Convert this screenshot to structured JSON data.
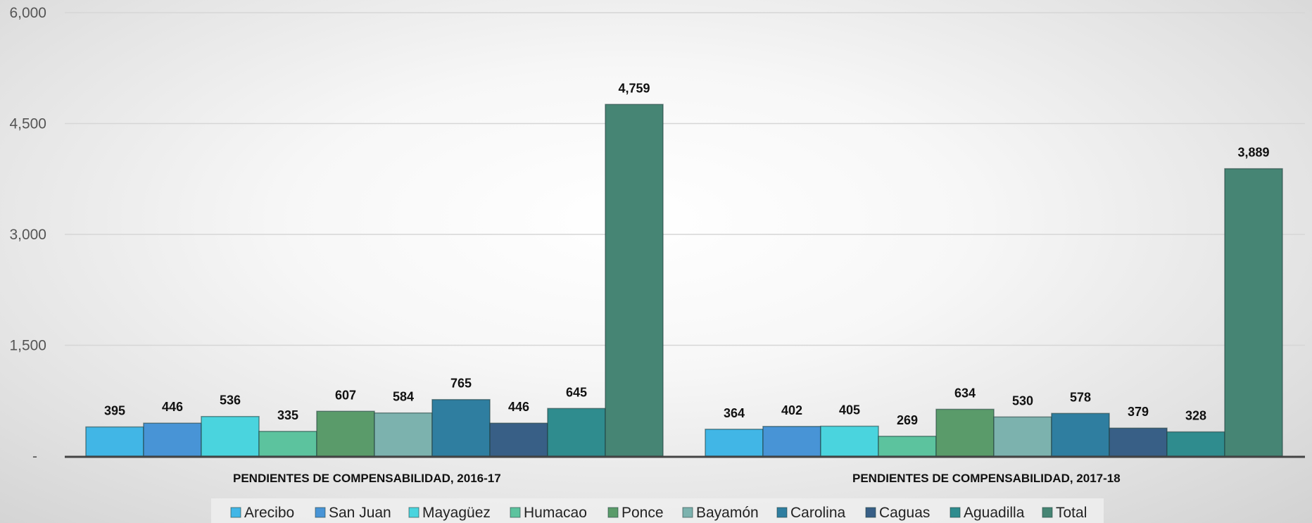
{
  "chart_data": {
    "type": "bar",
    "categories": [
      "PENDIENTES DE COMPENSABILIDAD, 2016-17",
      "PENDIENTES DE COMPENSABILIDAD, 2017-18"
    ],
    "series": [
      {
        "name": "Arecibo",
        "color": "#41b6e6",
        "values": [
          395,
          364
        ]
      },
      {
        "name": "San Juan",
        "color": "#4894d6",
        "values": [
          446,
          402
        ]
      },
      {
        "name": "Mayagüez",
        "color": "#4ad4de",
        "values": [
          536,
          405
        ]
      },
      {
        "name": "Humacao",
        "color": "#5cc39e",
        "values": [
          335,
          269
        ]
      },
      {
        "name": "Ponce",
        "color": "#5a9b6a",
        "values": [
          607,
          634
        ]
      },
      {
        "name": "Bayamón",
        "color": "#7cb2ae",
        "values": [
          584,
          530
        ]
      },
      {
        "name": "Carolina",
        "color": "#2f7ea0",
        "values": [
          765,
          578
        ]
      },
      {
        "name": "Caguas",
        "color": "#385f86",
        "values": [
          446,
          379
        ]
      },
      {
        "name": "Aguadilla",
        "color": "#2f8c8e",
        "values": [
          645,
          328
        ]
      },
      {
        "name": "Total",
        "color": "#468574",
        "values": [
          4759,
          3889
        ]
      }
    ],
    "data_labels": [
      [
        "395",
        "364"
      ],
      [
        "446",
        "402"
      ],
      [
        "536",
        "405"
      ],
      [
        "335",
        "269"
      ],
      [
        "607",
        "634"
      ],
      [
        "584",
        "530"
      ],
      [
        "765",
        "578"
      ],
      [
        "446",
        "379"
      ],
      [
        "645",
        "328"
      ],
      [
        "4,759",
        "3,889"
      ]
    ],
    "ylim": [
      0,
      6000
    ],
    "yticks": [
      0,
      1500,
      3000,
      4500,
      6000
    ],
    "ytick_labels": [
      "-",
      "1,500",
      "3,000",
      "4,500",
      "6,000"
    ],
    "grid": true,
    "legend_position": "bottom",
    "title": "",
    "xlabel": "",
    "ylabel": ""
  }
}
